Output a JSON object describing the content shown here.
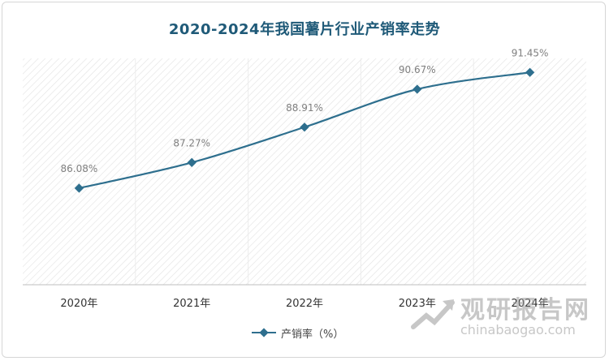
{
  "title": "2020-2024年我国薯片行业产销率走势",
  "chart_data": {
    "type": "line",
    "title": "2020-2024年我国薯片行业产销率走势",
    "categories": [
      "2020年",
      "2021年",
      "2022年",
      "2023年",
      "2024年"
    ],
    "series": [
      {
        "name": "产销率（%）",
        "values": [
          86.08,
          87.27,
          88.91,
          90.67,
          91.45
        ],
        "data_labels": [
          "86.08%",
          "87.27%",
          "88.91%",
          "90.67%",
          "91.45%"
        ],
        "color": "#2e6f8e"
      }
    ],
    "ylim": [
      81.6,
      92.1
    ],
    "legend_position": "bottom",
    "grid": false,
    "background_pattern": "diagonal-hatch"
  },
  "legend": {
    "label": "产销率（%）"
  },
  "watermark": {
    "text": "观研报告网",
    "url": "chinabaogao.com"
  }
}
